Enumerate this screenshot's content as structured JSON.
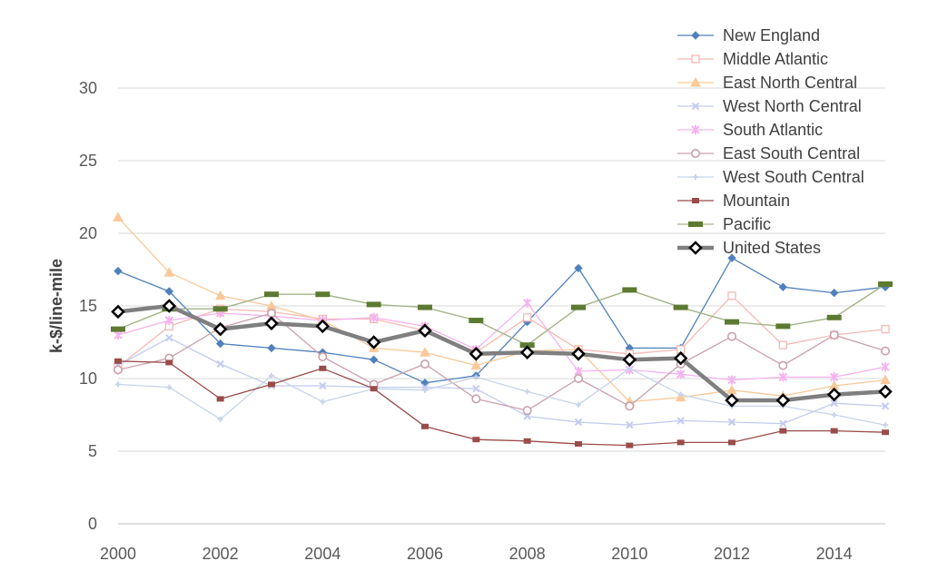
{
  "chart_data": {
    "type": "line",
    "title": "",
    "xlabel": "",
    "ylabel": "k-$/line-mile",
    "xlim": [
      2000,
      2015
    ],
    "ylim": [
      0,
      30
    ],
    "x": [
      2000,
      2001,
      2002,
      2003,
      2004,
      2005,
      2006,
      2007,
      2008,
      2009,
      2010,
      2011,
      2012,
      2013,
      2014,
      2015
    ],
    "x_ticks": [
      "2000",
      "2002",
      "2004",
      "2006",
      "2008",
      "2010",
      "2012",
      "2014"
    ],
    "y_ticks": [
      "0",
      "5",
      "10",
      "15",
      "20",
      "25",
      "30"
    ],
    "grid": "horizontal",
    "legend_position": "top-right",
    "series": [
      {
        "name": "New England",
        "color": "#4f81bd",
        "marker": "diamond",
        "values": [
          17.4,
          16.0,
          12.4,
          12.1,
          11.8,
          11.3,
          9.7,
          10.2,
          13.9,
          17.6,
          12.1,
          12.1,
          18.3,
          16.3,
          15.9,
          16.3
        ]
      },
      {
        "name": "Middle Atlantic",
        "color": "#f4b9b4",
        "marker": "square-open",
        "values": [
          10.8,
          13.6,
          14.8,
          14.6,
          14.1,
          14.1,
          13.3,
          11.8,
          14.2,
          12.0,
          11.7,
          12.0,
          15.7,
          12.3,
          13.0,
          13.4
        ]
      },
      {
        "name": "East North Central",
        "color": "#f9c99a",
        "marker": "triangle",
        "values": [
          21.1,
          17.3,
          15.7,
          15.0,
          14.0,
          12.1,
          11.8,
          10.9,
          11.9,
          12.0,
          8.4,
          8.7,
          9.2,
          8.8,
          9.5,
          9.9
        ]
      },
      {
        "name": "West North Central",
        "color": "#c3cbf0",
        "marker": "x",
        "values": [
          10.9,
          12.8,
          11.0,
          9.5,
          9.5,
          9.4,
          9.4,
          9.3,
          7.4,
          7.0,
          6.8,
          7.1,
          7.0,
          6.9,
          8.3,
          8.1
        ]
      },
      {
        "name": "South Atlantic",
        "color": "#f4b3ef",
        "marker": "star",
        "values": [
          13.0,
          14.0,
          14.5,
          14.3,
          14.0,
          14.2,
          13.6,
          12.0,
          15.2,
          10.5,
          10.6,
          10.3,
          9.9,
          10.1,
          10.1,
          10.8
        ]
      },
      {
        "name": "East South Central",
        "color": "#c9a0ac",
        "marker": "circle-open",
        "values": [
          10.6,
          11.4,
          13.5,
          14.5,
          11.5,
          9.6,
          11.0,
          8.6,
          7.8,
          10.0,
          8.1,
          11.0,
          12.9,
          10.9,
          13.0,
          11.9
        ]
      },
      {
        "name": "West South Central",
        "color": "#c8d4ea",
        "marker": "plus",
        "values": [
          9.6,
          9.4,
          7.2,
          10.2,
          8.4,
          9.3,
          9.2,
          10.1,
          9.1,
          8.2,
          10.7,
          8.9,
          8.1,
          8.1,
          7.5,
          6.8
        ]
      },
      {
        "name": "Mountain",
        "color": "#9a4c4a",
        "marker": "dash",
        "values": [
          11.2,
          11.1,
          8.6,
          9.6,
          10.7,
          9.3,
          6.7,
          5.8,
          5.7,
          5.5,
          5.4,
          5.6,
          5.6,
          6.4,
          6.4,
          6.3
        ]
      },
      {
        "name": "Pacific",
        "color": "#a3b38a",
        "marker": "bar",
        "markerColor": "#5c7a31",
        "values": [
          13.4,
          14.8,
          14.8,
          15.8,
          15.8,
          15.1,
          14.9,
          14.0,
          12.3,
          14.9,
          16.1,
          14.9,
          13.9,
          13.6,
          14.2,
          16.5
        ]
      },
      {
        "name": "United States",
        "color": "#7f7f7f",
        "marker": "diamond-open",
        "values": [
          14.6,
          15.0,
          13.4,
          13.8,
          13.6,
          12.5,
          13.3,
          11.7,
          11.8,
          11.7,
          11.3,
          11.4,
          8.5,
          8.5,
          8.9,
          9.1
        ]
      }
    ]
  }
}
